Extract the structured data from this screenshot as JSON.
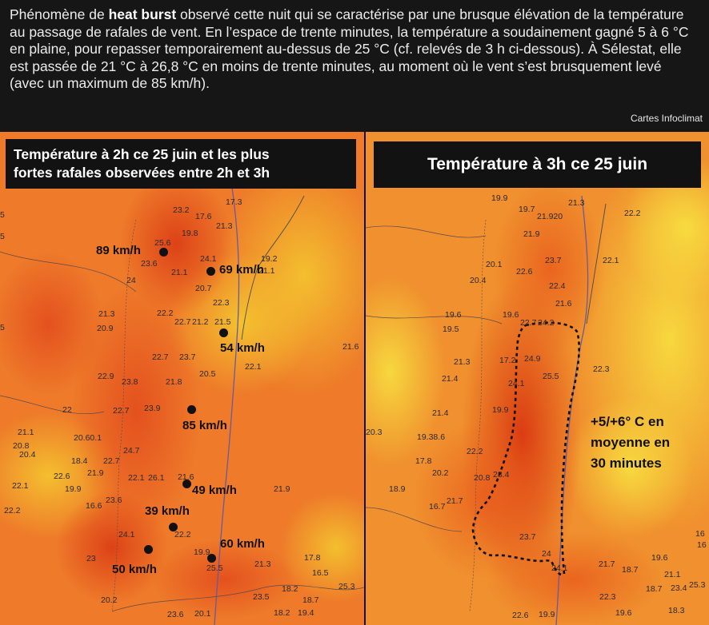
{
  "caption": {
    "before": "Phénomène de ",
    "bold": "heat burst",
    "after": " observé cette nuit qui se caractérise par une brusque élévation de la température au passage de rafales de vent. En l’espace de trente minutes, la température a soudainement gagné 5 à 6 °C en plaine, pour repasser temporairement au-dessus de 25 °C (cf. relevés de 3 h ci-dessous). À Sélestat, elle est passée de 21 °C à 26,8 °C en moins de trente minutes, au moment où le vent s’est brusquement levé (avec un maximum de 85 km/h).",
    "credit": "Cartes Infoclimat"
  },
  "left_map": {
    "title_line1": "Température à 2h ce 25 juin et les plus",
    "title_line2": "fortes rafales observées entre 2h et 3h",
    "gusts": [
      {
        "label": "89 km/h"
      },
      {
        "label": "69 km/h"
      },
      {
        "label": "54 km/h"
      },
      {
        "label": "85 km/h"
      },
      {
        "label": "49 km/h"
      },
      {
        "label": "39 km/h"
      },
      {
        "label": "60 km/h"
      },
      {
        "label": "50 km/h"
      }
    ],
    "temps": [
      "17.3",
      "23.2",
      "17.6",
      "21.3",
      "19.8",
      "25.6",
      "23.6",
      "21.1",
      "24.1",
      "19.2",
      "24",
      "21.1",
      "20.7",
      "22.3",
      "21.3",
      "22.2",
      "22.7",
      "21.2",
      "21.5",
      "20.9",
      "21.6",
      "22.7",
      "23.7",
      "22.1",
      "22.9",
      "23.8",
      "21.8",
      "20.5",
      "22",
      "22.7",
      "23.9",
      "21.1",
      "20.8",
      "20.60.1",
      "20.4",
      "24.7",
      "18.4",
      "22.7",
      "22.6",
      "21.9",
      "22.1",
      "26.1",
      "21.6",
      "22.1",
      "19.9",
      "16.6",
      "23.6",
      "21.9",
      "22.2",
      "22.2",
      "24.1",
      "23",
      "19.9",
      "21.3",
      "17.8",
      "16.5",
      "25.5",
      "18.2",
      "25.3",
      "20.2",
      "23.5",
      "18.7",
      "23.6",
      "20.1",
      "18.2",
      "19.4",
      "5",
      "5",
      "5"
    ]
  },
  "right_map": {
    "title": "Température à 3h ce 25 juin",
    "annotation_line1": "+5/+6° C en",
    "annotation_line2": "moyenne en",
    "annotation_line3": "30 minutes",
    "temps": [
      "19.9",
      "21.3",
      "19.7",
      "21.920",
      "22.2",
      "21.9",
      "23.7",
      "20.1",
      "22.1",
      "22.6",
      "20.4",
      "22.4",
      "21.6",
      "19.6",
      "19.5",
      "19.6",
      "22.7",
      "24.2",
      "17.2",
      "24.9",
      "21.3",
      "25.5",
      "22.3",
      "21.4",
      "24.1",
      "19.9",
      "21.4",
      "20.3",
      "19.38.6",
      "17.8",
      "20.2",
      "22.2",
      "20.8",
      "28.4",
      "18.9",
      "21.7",
      "16.7",
      "23.7",
      "24",
      "21.7",
      "24.1",
      "18.7",
      "21.1",
      "19.6",
      "18.7",
      "23.4",
      "25.3",
      "16",
      "22.3",
      "22.6",
      "19.9",
      "19.6",
      "18.3",
      "16"
    ]
  }
}
